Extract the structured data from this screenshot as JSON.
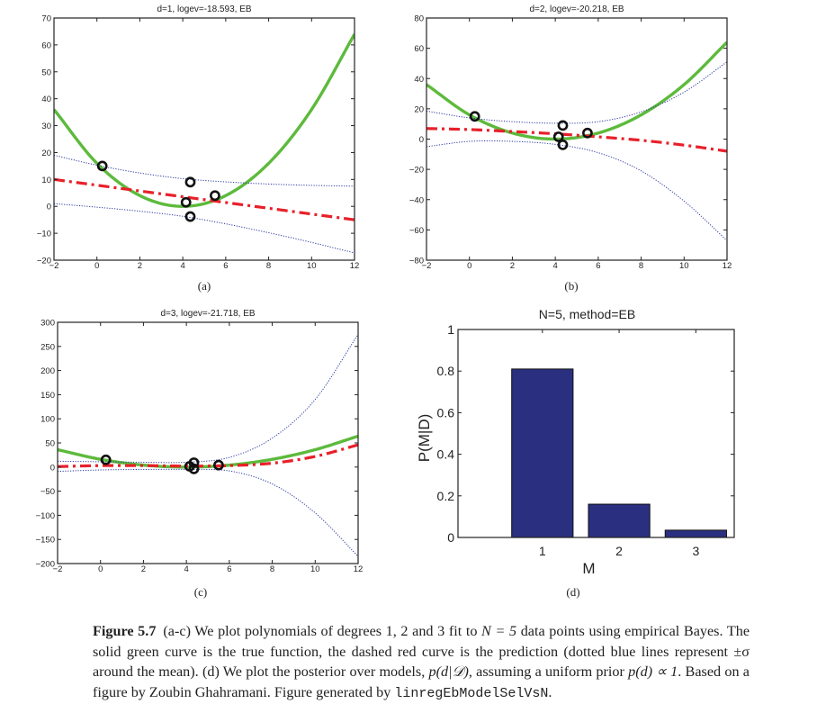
{
  "figure": {
    "caption_label": "Figure 5.7",
    "caption_text_1": "(a-c) We plot polynomials of degrees 1, 2 and 3 fit to ",
    "caption_math_N": "N = 5",
    "caption_text_2": " data points using empirical Bayes. The solid green curve is the true function, the dashed red curve is the prediction (dotted blue lines represent ",
    "caption_math_sigma": "±σ",
    "caption_text_3": " around the mean). (d) We plot the posterior over models, ",
    "caption_math_post": "p(d|𝒟)",
    "caption_text_4": ", assuming a uniform prior ",
    "caption_math_prior": "p(d) ∝ 1",
    "caption_text_5": ". Based on a figure by Zoubin Ghahramani. Figure generated by ",
    "caption_code": "linregEbModelSelVsN",
    "caption_text_6": "."
  },
  "colors": {
    "true_curve": "#5dba3c",
    "prediction": "#e8202a",
    "error_bars": "#2b3aa0",
    "points": "#111111",
    "bars": "#2b2f7f"
  },
  "chart_data": [
    {
      "type": "line",
      "panel_label": "(a)",
      "title": "d=1, logev=-18.593, EB",
      "xlim": [
        -2,
        12
      ],
      "ylim": [
        -20,
        70
      ],
      "xticks": [
        -2,
        0,
        2,
        4,
        6,
        8,
        10,
        12
      ],
      "yticks": [
        -20,
        -10,
        0,
        10,
        20,
        30,
        40,
        50,
        60,
        70
      ],
      "data_points": {
        "x": [
          0.25,
          4.15,
          4.35,
          4.35,
          5.5
        ],
        "y": [
          15,
          1.5,
          9,
          -3.8,
          4
        ]
      },
      "series": [
        {
          "name": "true function",
          "style": "solid",
          "x": [
            -2,
            0,
            2,
            4,
            6,
            8,
            10,
            12
          ],
          "y": [
            36,
            16,
            4,
            0,
            4,
            16,
            36,
            64
          ]
        },
        {
          "name": "prediction",
          "style": "dashdot",
          "x": [
            -2,
            12
          ],
          "y": [
            10,
            -5
          ]
        },
        {
          "name": "upper sigma",
          "style": "dotted",
          "x": [
            -2,
            0,
            2,
            4,
            6,
            8,
            10,
            12
          ],
          "y": [
            19,
            15.3,
            12.4,
            10.3,
            9.1,
            8.3,
            7.8,
            7.5
          ]
        },
        {
          "name": "lower sigma",
          "style": "dotted",
          "x": [
            -2,
            0,
            2,
            4,
            6,
            8,
            10,
            12
          ],
          "y": [
            1,
            -0.3,
            -1.8,
            -3.7,
            -6.5,
            -9.8,
            -13.4,
            -17.3
          ]
        }
      ]
    },
    {
      "type": "line",
      "panel_label": "(b)",
      "title": "d=2, logev=-20.218, EB",
      "xlim": [
        -2,
        12
      ],
      "ylim": [
        -80,
        80
      ],
      "xticks": [
        -2,
        0,
        2,
        4,
        6,
        8,
        10,
        12
      ],
      "yticks": [
        -80,
        -60,
        -40,
        -20,
        0,
        20,
        40,
        60,
        80
      ],
      "data_points": {
        "x": [
          0.25,
          4.15,
          4.35,
          4.35,
          5.5
        ],
        "y": [
          15,
          1.5,
          9,
          -3.8,
          4
        ]
      },
      "series": [
        {
          "name": "true function",
          "style": "solid",
          "x": [
            -2,
            0,
            2,
            4,
            6,
            8,
            10,
            12
          ],
          "y": [
            36,
            16,
            4,
            0,
            4,
            16,
            36,
            64
          ]
        },
        {
          "name": "prediction",
          "style": "dashdot",
          "x": [
            -2,
            0,
            2,
            4,
            6,
            8,
            10,
            12
          ],
          "y": [
            7,
            6.3,
            5,
            3.5,
            1.5,
            -0.8,
            -4,
            -8
          ]
        },
        {
          "name": "upper sigma",
          "style": "dotted",
          "x": [
            -2,
            0,
            2,
            4,
            6,
            8,
            10,
            12
          ],
          "y": [
            18.5,
            14,
            11.5,
            10.5,
            11.5,
            18,
            31,
            51
          ]
        },
        {
          "name": "lower sigma",
          "style": "dotted",
          "x": [
            -2,
            0,
            2,
            4,
            6,
            8,
            10,
            12
          ],
          "y": [
            -5,
            -1.5,
            -1.5,
            -3.5,
            -9,
            -21,
            -41,
            -67
          ]
        }
      ]
    },
    {
      "type": "line",
      "panel_label": "(c)",
      "title": "d=3, logev=-21.718, EB",
      "xlim": [
        -2,
        12
      ],
      "ylim": [
        -200,
        300
      ],
      "xticks": [
        -2,
        0,
        2,
        4,
        6,
        8,
        10,
        12
      ],
      "yticks": [
        -200,
        -150,
        -100,
        -50,
        0,
        50,
        100,
        150,
        200,
        250,
        300
      ],
      "data_points": {
        "x": [
          0.25,
          4.15,
          4.35,
          4.35,
          5.5
        ],
        "y": [
          15,
          1.5,
          9,
          -3.8,
          4
        ]
      },
      "series": [
        {
          "name": "true function",
          "style": "solid",
          "x": [
            -2,
            0,
            2,
            4,
            6,
            8,
            10,
            12
          ],
          "y": [
            36,
            16,
            4,
            0,
            4,
            16,
            36,
            64
          ]
        },
        {
          "name": "prediction",
          "style": "dashdot",
          "x": [
            -2,
            0,
            2,
            4,
            6,
            8,
            10,
            12
          ],
          "y": [
            1,
            3,
            3,
            2,
            3,
            8,
            22,
            46
          ]
        },
        {
          "name": "upper sigma",
          "style": "dotted",
          "x": [
            -2,
            0,
            2,
            4,
            6,
            8,
            10,
            12
          ],
          "y": [
            12,
            11,
            10,
            10,
            20,
            60,
            140,
            275
          ]
        },
        {
          "name": "lower sigma",
          "style": "dotted",
          "x": [
            -2,
            0,
            2,
            4,
            6,
            8,
            10,
            12
          ],
          "y": [
            -9,
            -6,
            -5,
            -5,
            -8,
            -35,
            -95,
            -185
          ]
        }
      ]
    },
    {
      "type": "bar",
      "panel_label": "(d)",
      "title": "N=5, method=EB",
      "xlabel": "M",
      "ylabel": "P(M|D)",
      "categories": [
        "1",
        "2",
        "3"
      ],
      "values": [
        0.81,
        0.16,
        0.035
      ],
      "xlim": [
        -0.1,
        3.5
      ],
      "ylim": [
        0,
        1
      ],
      "yticks": [
        0,
        0.2,
        0.4,
        0.6,
        0.8,
        1
      ],
      "yticklabels": [
        "0",
        "0.2",
        "0.4",
        "0.6",
        "0.8",
        "1"
      ]
    }
  ]
}
